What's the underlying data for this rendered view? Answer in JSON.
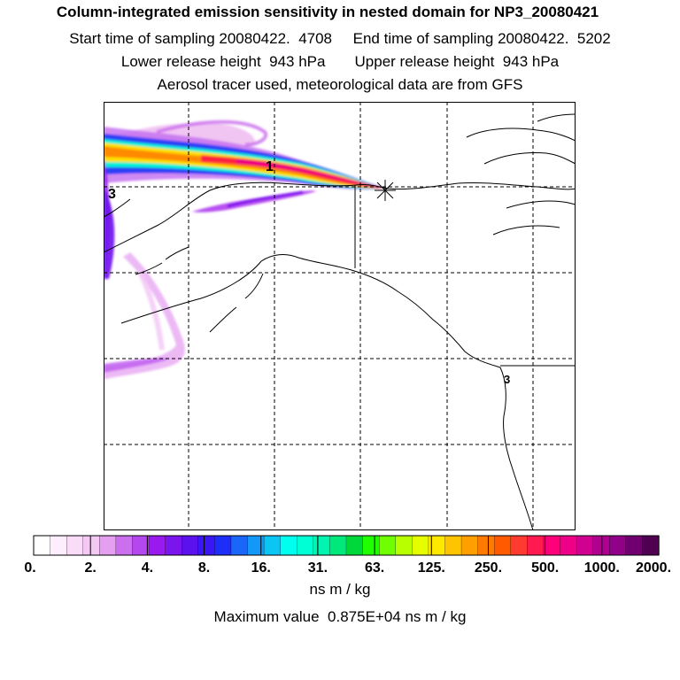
{
  "header": {
    "line1": "Column-integrated emission sensitivity in nested domain for NP3_20080421",
    "line2": "Start time of sampling 20080422.  4708     End time of sampling 20080422.  5202",
    "line3": "Lower release height  943 hPa       Upper release height  943 hPa",
    "line4": "Aerosol tracer used, meteorological data are from GFS"
  },
  "map": {
    "labels": [
      {
        "text": "1"
      },
      {
        "text": "3"
      },
      {
        "text": "3"
      }
    ]
  },
  "colorbar": {
    "tick_labels": [
      "0.",
      "2.",
      "4.",
      "8.",
      "16.",
      "31.",
      "63.",
      "125.",
      "250.",
      "500.",
      "1000.",
      "2000."
    ],
    "colors": [
      "#ffffff",
      "#fdeefd",
      "#f9ddf8",
      "#f4c8f3",
      "#e59ff0",
      "#cc6ef0",
      "#b447ee",
      "#9a19ee",
      "#7a15ee",
      "#5a11ee",
      "#3a16f5",
      "#1c2ef7",
      "#1a66f9",
      "#1299f8",
      "#0bc5f5",
      "#00ffee",
      "#00ffd4",
      "#00f5b0",
      "#00e87a",
      "#00d83a",
      "#20ff00",
      "#70ff00",
      "#b8ff00",
      "#e6ff00",
      "#ffe800",
      "#ffc400",
      "#ffa000",
      "#ff7a00",
      "#ff5a00",
      "#ff3a30",
      "#ff1a50",
      "#ff007a",
      "#ee0088",
      "#d00090",
      "#b00090",
      "#900088",
      "#700070",
      "#500050"
    ],
    "unit": "ns m / kg"
  },
  "footer": {
    "max_value": "Maximum value  0.875E+04 ns m / kg"
  }
}
